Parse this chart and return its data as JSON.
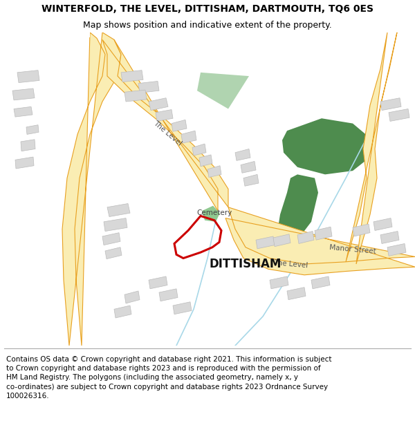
{
  "title": "WINTERFOLD, THE LEVEL, DITTISHAM, DARTMOUTH, TQ6 0ES",
  "subtitle": "Map shows position and indicative extent of the property.",
  "footer": "Contains OS data © Crown copyright and database right 2021. This information is subject to Crown copyright and database rights 2023 and is reproduced with the permission of HM Land Registry. The polygons (including the associated geometry, namely x, y co-ordinates) are subject to Crown copyright and database rights 2023 Ordnance Survey 100026316.",
  "road_yellow": "#faedb3",
  "road_yellow_border": "#e8a020",
  "building_color": "#d8d8d8",
  "building_edge": "#bbbbbb",
  "green_dark": "#5a9b5a",
  "red_plot": "#cc0000",
  "title_fontsize": 10,
  "subtitle_fontsize": 9,
  "footer_fontsize": 7.5
}
